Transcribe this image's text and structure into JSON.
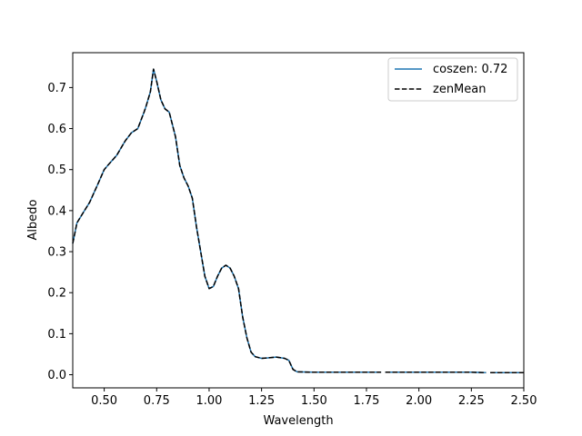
{
  "chart_data": {
    "type": "line",
    "xlabel": "Wavelength",
    "ylabel": "Albedo",
    "xlim": [
      0.35,
      2.5
    ],
    "ylim": [
      -0.032,
      0.785
    ],
    "xticks": [
      "0.50",
      "0.75",
      "1.00",
      "1.25",
      "1.50",
      "1.75",
      "2.00",
      "2.25",
      "2.50"
    ],
    "yticks": [
      "0.0",
      "0.1",
      "0.2",
      "0.3",
      "0.4",
      "0.5",
      "0.6",
      "0.7"
    ],
    "legend_position": "top-right",
    "grid": false,
    "series": [
      {
        "name": "coszen: 0.72",
        "color": "#1f77b4",
        "style": "solid",
        "x": [
          0.35,
          0.37,
          0.4,
          0.43,
          0.47,
          0.5,
          0.52,
          0.56,
          0.6,
          0.63,
          0.66,
          0.69,
          0.7,
          0.72,
          0.735,
          0.75,
          0.77,
          0.79,
          0.81,
          0.84,
          0.86,
          0.88,
          0.9,
          0.92,
          0.94,
          0.96,
          0.98,
          1.0,
          1.02,
          1.04,
          1.06,
          1.08,
          1.1,
          1.12,
          1.14,
          1.16,
          1.18,
          1.2,
          1.22,
          1.25,
          1.28,
          1.32,
          1.36,
          1.38,
          1.4,
          1.42,
          1.5,
          1.6,
          1.75,
          1.82,
          1.84,
          1.89,
          2.0,
          2.1,
          2.25,
          2.32,
          2.34,
          2.5
        ],
        "y": [
          0.32,
          0.37,
          0.395,
          0.42,
          0.465,
          0.5,
          0.512,
          0.535,
          0.57,
          0.59,
          0.6,
          0.64,
          0.655,
          0.69,
          0.745,
          0.715,
          0.67,
          0.648,
          0.64,
          0.58,
          0.51,
          0.48,
          0.46,
          0.43,
          0.36,
          0.3,
          0.24,
          0.21,
          0.215,
          0.24,
          0.26,
          0.267,
          0.26,
          0.24,
          0.21,
          0.14,
          0.09,
          0.055,
          0.044,
          0.04,
          0.041,
          0.043,
          0.04,
          0.035,
          0.013,
          0.007,
          0.006,
          0.006,
          0.006,
          0.006,
          0.006,
          0.006,
          0.006,
          0.006,
          0.006,
          0.005,
          0.005,
          0.005
        ],
        "x_gaps_after": [
          1.82,
          2.32
        ]
      },
      {
        "name": "zenMean",
        "color": "#000000",
        "style": "dashed",
        "x": [
          0.35,
          0.37,
          0.4,
          0.43,
          0.47,
          0.5,
          0.52,
          0.56,
          0.6,
          0.63,
          0.66,
          0.69,
          0.7,
          0.72,
          0.735,
          0.75,
          0.77,
          0.79,
          0.81,
          0.84,
          0.86,
          0.88,
          0.9,
          0.92,
          0.94,
          0.96,
          0.98,
          1.0,
          1.02,
          1.04,
          1.06,
          1.08,
          1.1,
          1.12,
          1.14,
          1.16,
          1.18,
          1.2,
          1.22,
          1.25,
          1.28,
          1.32,
          1.36,
          1.38,
          1.4,
          1.42,
          1.5,
          1.6,
          1.75,
          1.82,
          1.84,
          1.89,
          2.0,
          2.1,
          2.25,
          2.32,
          2.34,
          2.5
        ],
        "y": [
          0.32,
          0.37,
          0.395,
          0.42,
          0.465,
          0.5,
          0.512,
          0.535,
          0.57,
          0.59,
          0.6,
          0.64,
          0.655,
          0.69,
          0.745,
          0.715,
          0.67,
          0.648,
          0.64,
          0.58,
          0.51,
          0.48,
          0.46,
          0.43,
          0.36,
          0.3,
          0.24,
          0.21,
          0.215,
          0.24,
          0.26,
          0.267,
          0.26,
          0.24,
          0.21,
          0.14,
          0.09,
          0.055,
          0.044,
          0.04,
          0.041,
          0.043,
          0.04,
          0.035,
          0.013,
          0.007,
          0.006,
          0.006,
          0.006,
          0.006,
          0.006,
          0.006,
          0.006,
          0.006,
          0.006,
          0.005,
          0.005,
          0.005
        ],
        "x_gaps_after": [
          1.82,
          2.32
        ]
      }
    ]
  }
}
